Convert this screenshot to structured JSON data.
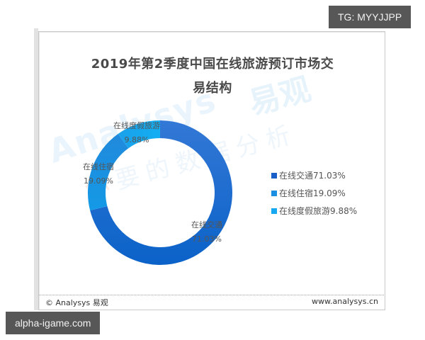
{
  "chart": {
    "title_line1": "2019年第2季度中国在线旅游预订市场交",
    "title_line2": "易结构"
  },
  "chart_data": {
    "type": "pie",
    "variant": "donut",
    "title": "2019年第2季度中国在线旅游预订市场交易结构",
    "categories": [
      "在线交通",
      "在线住宿",
      "在线度假旅游"
    ],
    "values": [
      71.03,
      19.09,
      9.88
    ],
    "unit": "%",
    "colors": [
      "#1a6dd8",
      "#1b8fe2",
      "#16a8f0"
    ],
    "start_angle_deg": 0,
    "direction": "clockwise",
    "legend_position": "right",
    "data_labels": [
      {
        "name": "在线交通",
        "value": "71.03%"
      },
      {
        "name": "在线住宿",
        "value": "19.09%"
      },
      {
        "name": "在线度假旅游",
        "value": "9.88%"
      }
    ]
  },
  "legend": {
    "items": [
      {
        "label": "在线交通71.03%",
        "color": "#1a5fc8"
      },
      {
        "label": "在线住宿19.09%",
        "color": "#1b8fe2"
      },
      {
        "label": "在线度假旅游9.88%",
        "color": "#16a8f0"
      }
    ]
  },
  "segment_labels": {
    "transport": {
      "name": "在线交通",
      "value": "71.03%"
    },
    "lodging": {
      "name": "在线住宿",
      "value": "19.09%"
    },
    "vacation": {
      "name": "在线度假旅游",
      "value": "9.88%"
    }
  },
  "watermark": {
    "analysys": "Analysys",
    "yiguan": "易观",
    "slogan_first": "你",
    "slogan_rest": "要的数据分析"
  },
  "footer": {
    "left": "© Analysys 易观",
    "right": "www.analysys.cn"
  },
  "overlays": {
    "tg_badge": "TG: MYYJJPP",
    "site_badge": "alpha-igame.com"
  }
}
